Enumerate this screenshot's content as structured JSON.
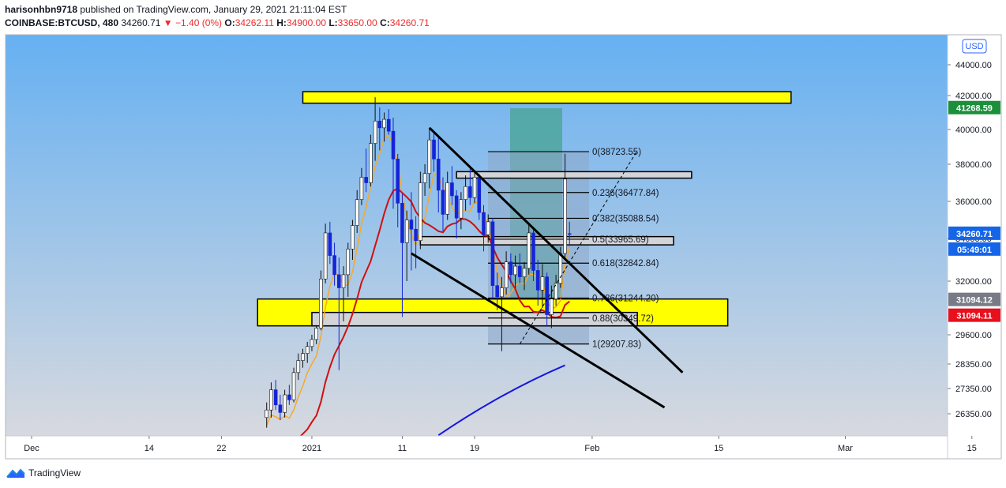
{
  "header": {
    "author": "harisonhbn9718",
    "published_text": "published on TradingView.com, January 29, 2021 21:11:04 EST",
    "symbol": "COINBASE:BTCUSD, 480",
    "last": "34260.71",
    "change": "−1.40 (0%)",
    "o_label": "O:",
    "o": "34262.11",
    "h_label": "H:",
    "h": "34900.00",
    "l_label": "L:",
    "l": "33650.00",
    "c_label": "C:",
    "c": "34260.71"
  },
  "currency_button": "USD",
  "brand": "TradingView",
  "colors": {
    "bg_top": "#66b0f2",
    "bg_bottom": "#d7d9df",
    "up_candle": "#ffffff",
    "down_candle": "#1424d6",
    "zone_yellow": "#ffff00",
    "target_box": "#4ea69b",
    "fib_box": "#8ea8c8",
    "ma_orange": "#f7a829",
    "ma_red": "#d0100e",
    "ma_blue": "#1616e0",
    "price_label_blue": "#1565e8",
    "price_label_green": "#1b8f3a",
    "price_label_red": "#e8101c",
    "price_label_grey": "#787b86"
  },
  "chart_data": {
    "type": "candlestick",
    "symbol": "COINBASE:BTCUSD",
    "interval": "480",
    "y_axis": {
      "ticks": [
        26350,
        27350,
        28350,
        29600,
        32000,
        34000,
        36000,
        38000,
        40000,
        42000,
        44000
      ],
      "tick_labels": [
        "26350.00",
        "27350.00",
        "28350.00",
        "29600.00",
        "32000.00",
        "34000.00",
        "36000.00",
        "38000.00",
        "40000.00",
        "42000.00",
        "44000.00"
      ]
    },
    "x_axis": {
      "labels": [
        "Dec",
        "14",
        "22",
        "2021",
        "11",
        "19",
        "Feb",
        "15",
        "Mar",
        "15"
      ],
      "dates": [
        "2020-12-01",
        "2020-12-14",
        "2020-12-22",
        "2021-01-01",
        "2021-01-11",
        "2021-01-19",
        "2021-02-01",
        "2021-02-15",
        "2021-03-01",
        "2021-03-15"
      ]
    },
    "price_tags": [
      {
        "value": 41268.59,
        "label": "41268.59",
        "color": "green"
      },
      {
        "value": 34260.71,
        "label": "34260.71",
        "color": "blue"
      },
      {
        "value": 34260.71,
        "label": "05:49:01",
        "color": "blue",
        "kind": "countdown"
      },
      {
        "value": 31094.12,
        "label": "31094.12",
        "color": "grey"
      },
      {
        "value": 31094.11,
        "label": "31094.11",
        "color": "red"
      }
    ],
    "fibonacci": [
      {
        "level": "0",
        "price": "38723.55",
        "label": "0(38723.55)"
      },
      {
        "level": "0.236",
        "price": "36477.84",
        "label": "0.236(36477.84)"
      },
      {
        "level": "0.382",
        "price": "35088.54",
        "label": "0.382(35088.54)"
      },
      {
        "level": "0.5",
        "price": "33965.69",
        "label": "0.5(33965.69)"
      },
      {
        "level": "0.618",
        "price": "32842.84",
        "label": "0.618(32842.84)"
      },
      {
        "level": "0.786",
        "price": "31244.20",
        "label": "0.786(31244.20)"
      },
      {
        "level": "0.88",
        "price": "30349.72",
        "label": "0.88(30349.72)"
      },
      {
        "level": "1",
        "price": "29207.83",
        "label": "1(29207.83)"
      }
    ],
    "zones": [
      {
        "kind": "resistance",
        "color": "yellow",
        "from": 41550,
        "to": 42250,
        "start": "2020-12-31",
        "end": "2021-02-23"
      },
      {
        "kind": "support",
        "color": "yellow",
        "from": 30000,
        "to": 31200,
        "start": "2020-12-26",
        "end": "2021-02-16"
      },
      {
        "kind": "box",
        "color": "grey",
        "from": 37250,
        "to": 37600,
        "start": "2021-01-17",
        "end": "2021-02-12"
      },
      {
        "kind": "box",
        "color": "grey",
        "from": 33700,
        "to": 34100,
        "start": "2021-01-13",
        "end": "2021-02-10"
      },
      {
        "kind": "box",
        "color": "grey",
        "from": 30000,
        "to": 30600,
        "start": "2021-01-01",
        "end": "2021-02-06"
      }
    ],
    "trendlines": [
      {
        "from": {
          "date": "2021-01-14",
          "price": 40100
        },
        "to": {
          "date": "2021-02-11",
          "price": 28000
        }
      },
      {
        "from": {
          "date": "2021-01-12",
          "price": 33300
        },
        "to": {
          "date": "2021-02-09",
          "price": 26600
        }
      },
      {
        "from": {
          "date": "2021-01-24",
          "price": 29200
        },
        "to": {
          "date": "2021-02-06",
          "price": 38800
        },
        "dashed": true
      }
    ],
    "candles": [
      {
        "d": "2020-12-27",
        "o": 26200,
        "h": 26800,
        "l": 25800,
        "c": 26500
      },
      {
        "d": "2020-12-27.5",
        "o": 26500,
        "h": 27600,
        "l": 26200,
        "c": 27300
      },
      {
        "d": "2020-12-28",
        "o": 27300,
        "h": 27700,
        "l": 26500,
        "c": 26700
      },
      {
        "d": "2020-12-28.5",
        "o": 26700,
        "h": 27100,
        "l": 26100,
        "c": 26400
      },
      {
        "d": "2020-12-29",
        "o": 26400,
        "h": 27300,
        "l": 26200,
        "c": 27100
      },
      {
        "d": "2020-12-29.5",
        "o": 27100,
        "h": 27500,
        "l": 26700,
        "c": 26900
      },
      {
        "d": "2020-12-30",
        "o": 26900,
        "h": 28200,
        "l": 26800,
        "c": 28000
      },
      {
        "d": "2020-12-30.5",
        "o": 28000,
        "h": 28800,
        "l": 27700,
        "c": 28500
      },
      {
        "d": "2020-12-31",
        "o": 28500,
        "h": 29000,
        "l": 28200,
        "c": 28800
      },
      {
        "d": "2020-12-31.5",
        "o": 28800,
        "h": 29300,
        "l": 28400,
        "c": 29100
      },
      {
        "d": "2021-01-01",
        "o": 29100,
        "h": 29600,
        "l": 28900,
        "c": 29400
      },
      {
        "d": "2021-01-01.5",
        "o": 29400,
        "h": 30000,
        "l": 29200,
        "c": 29900
      },
      {
        "d": "2021-01-02",
        "o": 29900,
        "h": 32500,
        "l": 29800,
        "c": 32100
      },
      {
        "d": "2021-01-02.5",
        "o": 32100,
        "h": 34800,
        "l": 31900,
        "c": 34300
      },
      {
        "d": "2021-01-03",
        "o": 34300,
        "h": 34900,
        "l": 32800,
        "c": 33200
      },
      {
        "d": "2021-01-03.5",
        "o": 33200,
        "h": 33800,
        "l": 31800,
        "c": 32300
      },
      {
        "d": "2021-01-04",
        "o": 32300,
        "h": 33100,
        "l": 28100,
        "c": 31700
      },
      {
        "d": "2021-01-04.5",
        "o": 31700,
        "h": 32700,
        "l": 30200,
        "c": 32300
      },
      {
        "d": "2021-01-05",
        "o": 32300,
        "h": 33800,
        "l": 31300,
        "c": 33500
      },
      {
        "d": "2021-01-05.5",
        "o": 33500,
        "h": 35000,
        "l": 33000,
        "c": 34700
      },
      {
        "d": "2021-01-06",
        "o": 34700,
        "h": 36600,
        "l": 34300,
        "c": 36100
      },
      {
        "d": "2021-01-06.5",
        "o": 36100,
        "h": 37800,
        "l": 35800,
        "c": 37300
      },
      {
        "d": "2021-01-07",
        "o": 37300,
        "h": 38900,
        "l": 36500,
        "c": 37000
      },
      {
        "d": "2021-01-07.5",
        "o": 37000,
        "h": 39700,
        "l": 36800,
        "c": 39200
      },
      {
        "d": "2021-01-08",
        "o": 39200,
        "h": 41900,
        "l": 38200,
        "c": 40500
      },
      {
        "d": "2021-01-08.5",
        "o": 40500,
        "h": 41300,
        "l": 38800,
        "c": 40100
      },
      {
        "d": "2021-01-09",
        "o": 40100,
        "h": 41000,
        "l": 39300,
        "c": 40600
      },
      {
        "d": "2021-01-09.5",
        "o": 40600,
        "h": 41200,
        "l": 39700,
        "c": 39900
      },
      {
        "d": "2021-01-10",
        "o": 39900,
        "h": 40700,
        "l": 35600,
        "c": 38300
      },
      {
        "d": "2021-01-10.5",
        "o": 38300,
        "h": 38600,
        "l": 34600,
        "c": 35900
      },
      {
        "d": "2021-01-11",
        "o": 35900,
        "h": 36400,
        "l": 30400,
        "c": 33800
      },
      {
        "d": "2021-01-11.5",
        "o": 33800,
        "h": 35500,
        "l": 32000,
        "c": 35000
      },
      {
        "d": "2021-01-12",
        "o": 35000,
        "h": 36500,
        "l": 32500,
        "c": 34500
      },
      {
        "d": "2021-01-12.5",
        "o": 34500,
        "h": 35200,
        "l": 32600,
        "c": 33900
      },
      {
        "d": "2021-01-13",
        "o": 33900,
        "h": 37600,
        "l": 33500,
        "c": 37000
      },
      {
        "d": "2021-01-13.5",
        "o": 37000,
        "h": 38000,
        "l": 36300,
        "c": 37500
      },
      {
        "d": "2021-01-14",
        "o": 37500,
        "h": 40100,
        "l": 36700,
        "c": 39400
      },
      {
        "d": "2021-01-14.5",
        "o": 39400,
        "h": 39900,
        "l": 37600,
        "c": 38300
      },
      {
        "d": "2021-01-15",
        "o": 38300,
        "h": 39500,
        "l": 35400,
        "c": 36600
      },
      {
        "d": "2021-01-15.5",
        "o": 36600,
        "h": 37300,
        "l": 34400,
        "c": 35300
      },
      {
        "d": "2021-01-16",
        "o": 35300,
        "h": 37600,
        "l": 35000,
        "c": 37000
      },
      {
        "d": "2021-01-16.5",
        "o": 37000,
        "h": 37900,
        "l": 35800,
        "c": 36300
      },
      {
        "d": "2021-01-17",
        "o": 36300,
        "h": 36600,
        "l": 34000,
        "c": 35100
      },
      {
        "d": "2021-01-17.5",
        "o": 35100,
        "h": 36500,
        "l": 34500,
        "c": 36100
      },
      {
        "d": "2021-01-18",
        "o": 36100,
        "h": 37400,
        "l": 35500,
        "c": 36800
      },
      {
        "d": "2021-01-18.5",
        "o": 36800,
        "h": 37800,
        "l": 35800,
        "c": 36200
      },
      {
        "d": "2021-01-19",
        "o": 36200,
        "h": 37700,
        "l": 35900,
        "c": 37300
      },
      {
        "d": "2021-01-19.5",
        "o": 37300,
        "h": 37500,
        "l": 35000,
        "c": 35400
      },
      {
        "d": "2021-01-20",
        "o": 35400,
        "h": 35800,
        "l": 33400,
        "c": 34200
      },
      {
        "d": "2021-01-20.5",
        "o": 34200,
        "h": 35300,
        "l": 33800,
        "c": 34900
      },
      {
        "d": "2021-01-21",
        "o": 34900,
        "h": 35100,
        "l": 31200,
        "c": 31800
      },
      {
        "d": "2021-01-21.5",
        "o": 31800,
        "h": 32400,
        "l": 30700,
        "c": 31300
      },
      {
        "d": "2021-01-22",
        "o": 31300,
        "h": 32200,
        "l": 28900,
        "c": 31700
      },
      {
        "d": "2021-01-22.5",
        "o": 31700,
        "h": 33400,
        "l": 31400,
        "c": 32900
      },
      {
        "d": "2021-01-23",
        "o": 32900,
        "h": 33300,
        "l": 31900,
        "c": 32300
      },
      {
        "d": "2021-01-23.5",
        "o": 32300,
        "h": 33200,
        "l": 31700,
        "c": 32700
      },
      {
        "d": "2021-01-24",
        "o": 32700,
        "h": 33300,
        "l": 31900,
        "c": 32200
      },
      {
        "d": "2021-01-24.5",
        "o": 32200,
        "h": 32900,
        "l": 31600,
        "c": 32600
      },
      {
        "d": "2021-01-25",
        "o": 32600,
        "h": 34800,
        "l": 32300,
        "c": 34300
      },
      {
        "d": "2021-01-25.5",
        "o": 34300,
        "h": 34500,
        "l": 32000,
        "c": 32500
      },
      {
        "d": "2021-01-26",
        "o": 32500,
        "h": 33000,
        "l": 30900,
        "c": 31600
      },
      {
        "d": "2021-01-26.5",
        "o": 31600,
        "h": 32800,
        "l": 30800,
        "c": 32200
      },
      {
        "d": "2021-01-27",
        "o": 32200,
        "h": 32400,
        "l": 30000,
        "c": 30500
      },
      {
        "d": "2021-01-27.5",
        "o": 30500,
        "h": 31800,
        "l": 29900,
        "c": 31200
      },
      {
        "d": "2021-01-28",
        "o": 31200,
        "h": 32300,
        "l": 30900,
        "c": 31900
      },
      {
        "d": "2021-01-28.5",
        "o": 31900,
        "h": 33600,
        "l": 31700,
        "c": 33300
      },
      {
        "d": "2021-01-29",
        "o": 33300,
        "h": 38600,
        "l": 33100,
        "c": 37200
      },
      {
        "d": "2021-01-29.5",
        "o": 34262.11,
        "h": 34900,
        "l": 33650,
        "c": 34260.71
      }
    ]
  }
}
